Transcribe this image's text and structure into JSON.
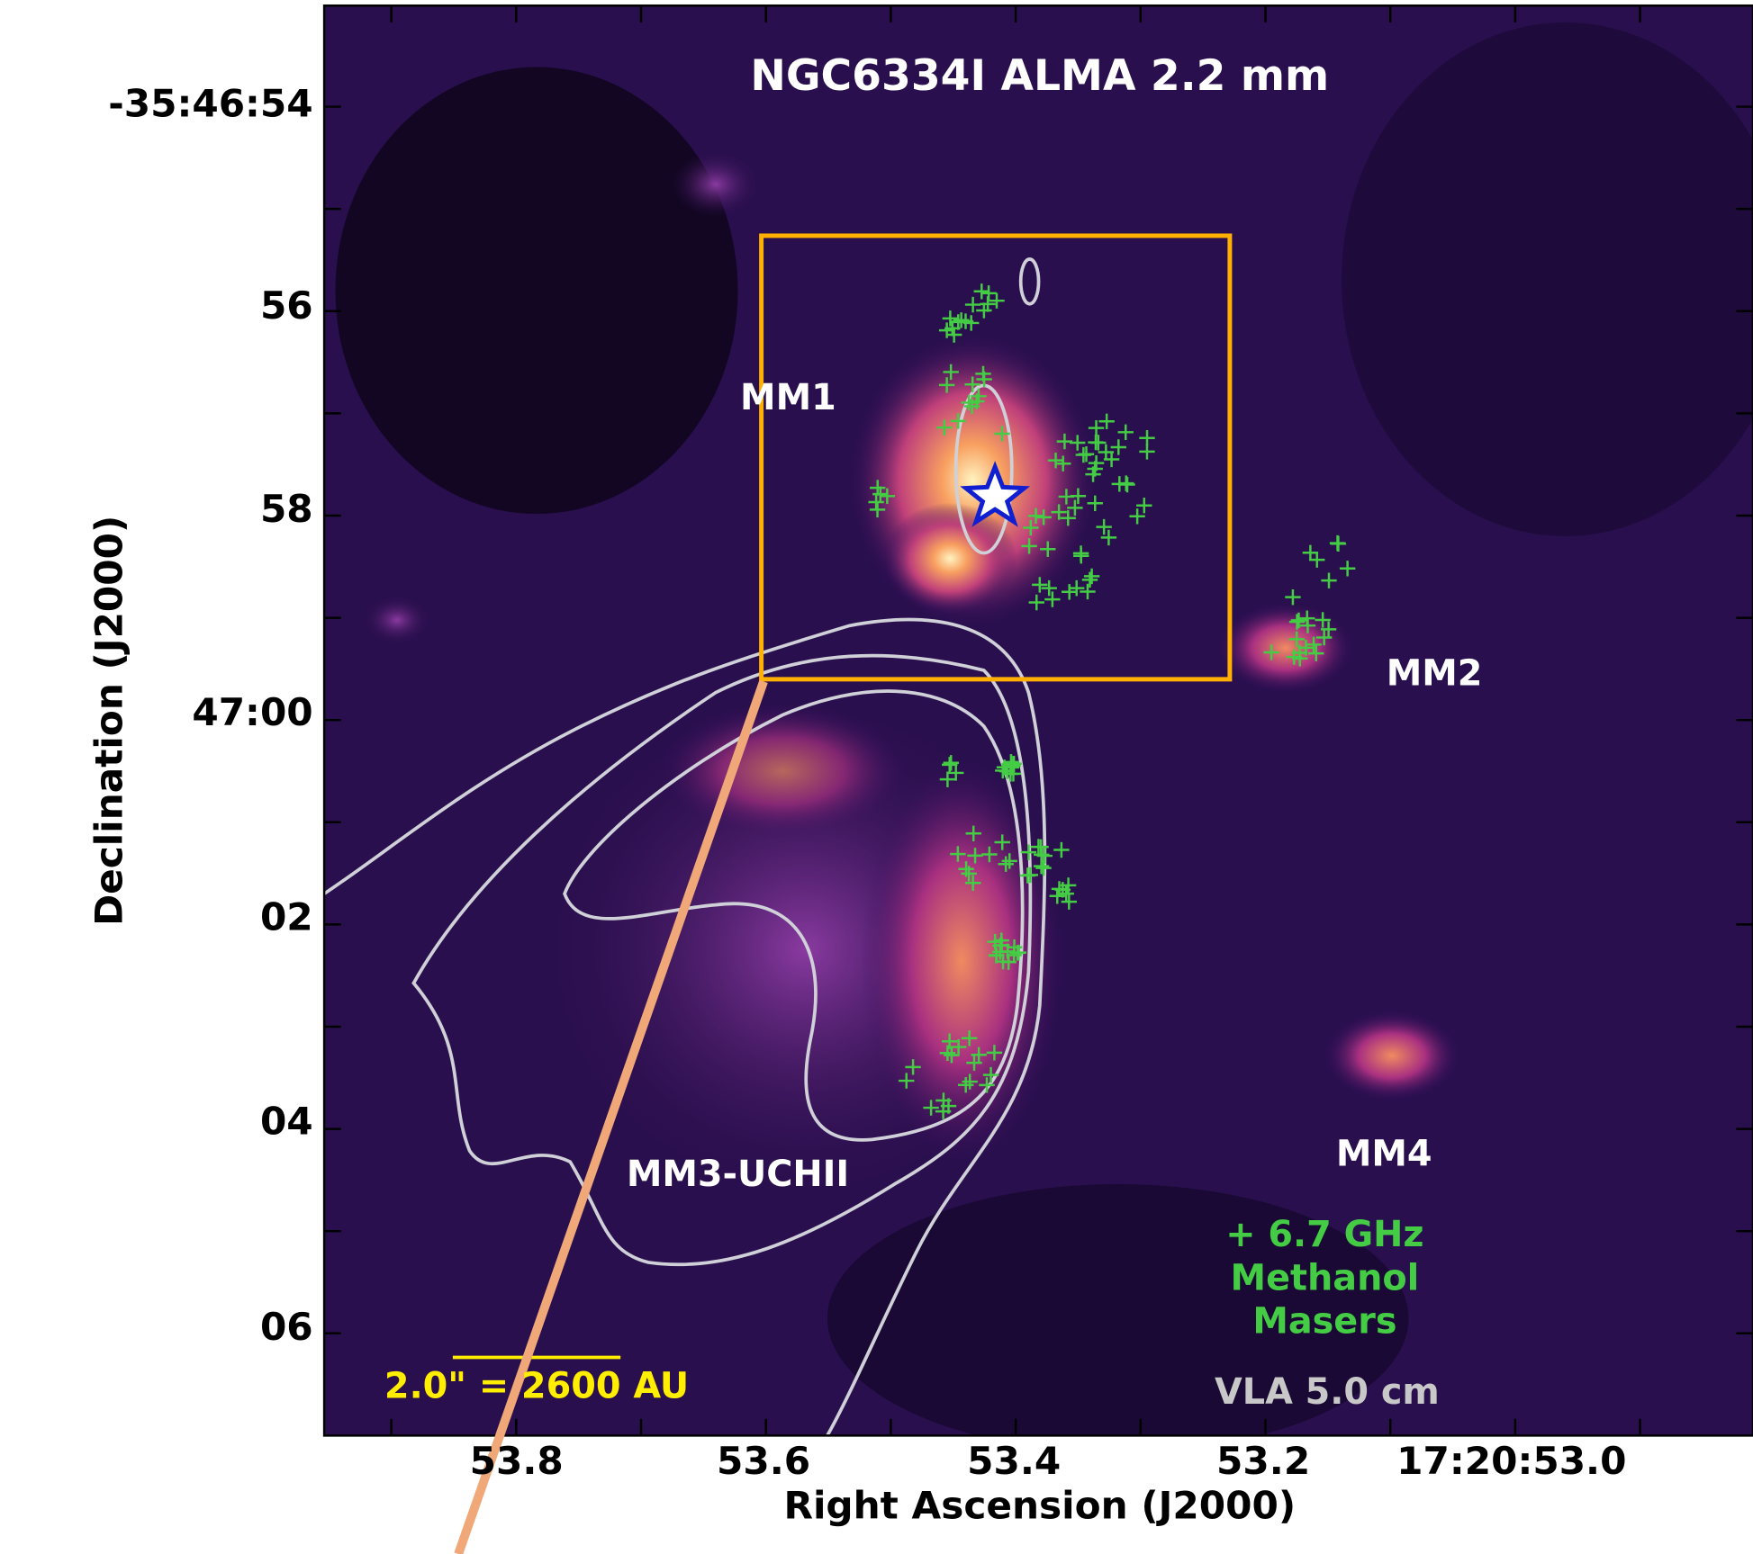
{
  "figure": {
    "title": "NGC6334I ALMA 2.2 mm",
    "x_label": "Right Ascension (J2000)",
    "y_label": "Declination (J2000)",
    "x_ticks": [
      "53.8",
      "53.6",
      "53.4",
      "53.2",
      "17:20:53.0"
    ],
    "y_ticks": [
      "-35:46:54",
      "56",
      "58",
      "47:00",
      "02",
      "04",
      "06"
    ],
    "sources": [
      "MM1",
      "MM2",
      "MM3-UCHII",
      "MM4"
    ],
    "legend": {
      "masers": [
        "+ 6.7 GHz",
        "Methanol",
        "Masers"
      ],
      "contours": "VLA 5.0 cm"
    },
    "scale_bar": "2.0\" = 2600 AU"
  }
}
